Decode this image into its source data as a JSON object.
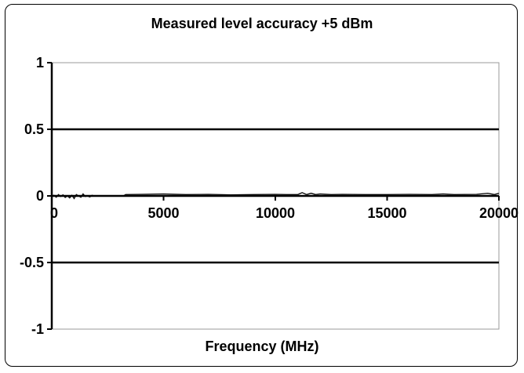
{
  "chart_data": {
    "type": "line",
    "title": "Measured level accuracy +5 dBm",
    "xlabel": "Frequency (MHz)",
    "ylabel": "",
    "xlim": [
      0,
      20000
    ],
    "ylim": [
      -1,
      1
    ],
    "x_ticks": [
      0,
      5000,
      10000,
      15000,
      20000
    ],
    "x_tick_labels": [
      "0",
      "5000",
      "10000",
      "15000",
      "20000"
    ],
    "y_ticks": [
      1,
      0.5,
      0,
      -0.5,
      -1
    ],
    "y_tick_labels": [
      "1",
      "0.5",
      "0",
      "-0.5",
      "-1"
    ],
    "grid_y_values": [
      0.5,
      0,
      -0.5
    ],
    "legend": "none",
    "line_color": "#000000",
    "series": [
      {
        "x": [
          0,
          100,
          200,
          300,
          400,
          500,
          600,
          700,
          800,
          900,
          1000,
          1100,
          1200,
          1300,
          1400,
          1500,
          1600,
          1700,
          1800,
          1900,
          2000,
          2300,
          2600,
          2900,
          3200,
          3300,
          4000,
          5000,
          6000,
          7000,
          8000,
          9000,
          10000,
          10500,
          11000,
          11200,
          11400,
          11600,
          11800,
          12000,
          12500,
          13000,
          14000,
          15000,
          16000,
          17000,
          17500,
          18000,
          19000,
          19500,
          19800,
          20000
        ],
        "y": [
          0.0,
          0.005,
          -0.01,
          0.01,
          -0.005,
          0.008,
          -0.012,
          0.0,
          -0.015,
          0.005,
          -0.02,
          0.01,
          0.0,
          -0.01,
          0.015,
          -0.005,
          0.0,
          -0.008,
          0.005,
          0.0,
          0.0,
          0.0,
          0.0,
          0.0,
          0.0,
          0.01,
          0.012,
          0.015,
          0.01,
          0.012,
          0.008,
          0.01,
          0.012,
          0.01,
          0.01,
          0.025,
          0.01,
          0.02,
          0.01,
          0.015,
          0.01,
          0.012,
          0.01,
          0.01,
          0.012,
          0.01,
          0.015,
          0.01,
          0.012,
          0.02,
          0.01,
          0.02
        ]
      }
    ]
  }
}
